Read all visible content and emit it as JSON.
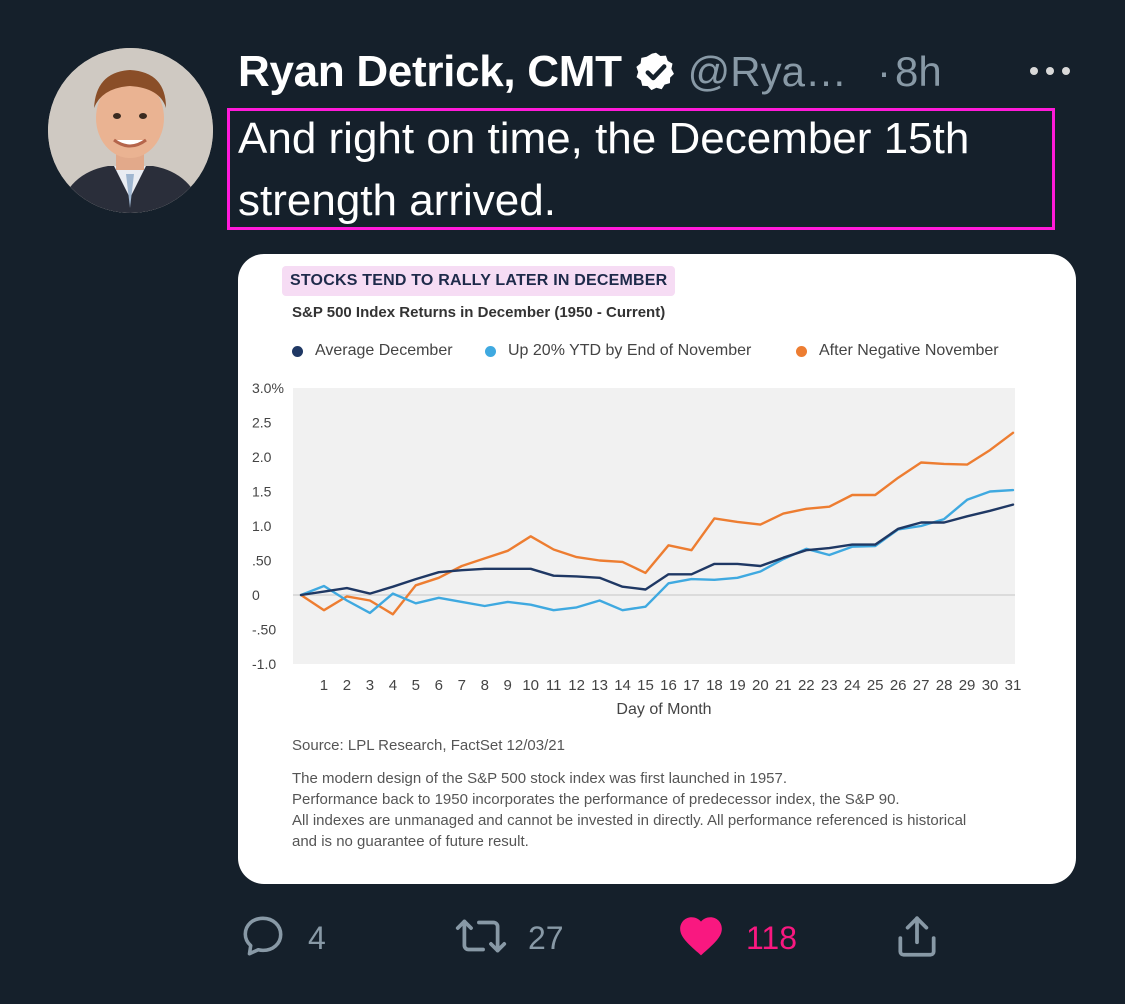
{
  "tweet": {
    "author_name": "Ryan Detrick, CMT",
    "handle": "@Rya…",
    "separator": "·",
    "time": "8h",
    "text_line1": "And right on time, the December 15th",
    "text_line2": "strength arrived."
  },
  "actions": {
    "replies": "4",
    "retweets": "27",
    "likes": "118"
  },
  "icons": [
    "avatar",
    "verified-badge-icon",
    "more-icon",
    "reply-icon",
    "retweet-icon",
    "heart-icon",
    "share-icon"
  ],
  "colors": {
    "background": "#15202b",
    "highlight_border": "#ff1ad9",
    "like": "#f91880",
    "muted": "#8899a6"
  },
  "chart_data": {
    "type": "line",
    "title": "STOCKS TEND TO RALLY LATER IN DECEMBER",
    "subtitle": "S&P 500 Index Returns in December (1950 - Current)",
    "xlabel": "Day of Month",
    "ylabel": "",
    "y_tick_labels": [
      "3.0%",
      "2.5",
      "2.0",
      "1.5",
      "1.0",
      ".50",
      "0",
      "-.50",
      "-1.0"
    ],
    "ylim": [
      -1.0,
      3.0
    ],
    "x": [
      0,
      1,
      2,
      3,
      4,
      5,
      6,
      7,
      8,
      9,
      10,
      11,
      12,
      13,
      14,
      15,
      16,
      17,
      18,
      19,
      20,
      21,
      22,
      23,
      24,
      25,
      26,
      27,
      28,
      29,
      30,
      31
    ],
    "x_tick_labels": [
      "1",
      "2",
      "3",
      "4",
      "5",
      "6",
      "7",
      "8",
      "9",
      "10",
      "11",
      "12",
      "13",
      "14",
      "15",
      "16",
      "17",
      "18",
      "19",
      "20",
      "21",
      "22",
      "23",
      "24",
      "25",
      "26",
      "27",
      "28",
      "29",
      "30",
      "31"
    ],
    "grid": "zero line only",
    "legend_position": "top",
    "series": [
      {
        "name": "Average December",
        "color": "#1f3864",
        "values": [
          0,
          0.05,
          0.1,
          0.02,
          0.12,
          0.23,
          0.33,
          0.36,
          0.38,
          0.38,
          0.38,
          0.28,
          0.27,
          0.25,
          0.12,
          0.08,
          0.3,
          0.3,
          0.45,
          0.45,
          0.42,
          0.54,
          0.65,
          0.68,
          0.73,
          0.73,
          0.96,
          1.05,
          1.05,
          1.14,
          1.22,
          1.31
        ]
      },
      {
        "name": "Up 20% YTD by End of November",
        "color": "#3fa9e0",
        "values": [
          0,
          0.13,
          -0.08,
          -0.26,
          0.02,
          -0.12,
          -0.04,
          -0.1,
          -0.16,
          -0.1,
          -0.14,
          -0.22,
          -0.18,
          -0.08,
          -0.22,
          -0.17,
          0.17,
          0.23,
          0.22,
          0.25,
          0.34,
          0.52,
          0.67,
          0.58,
          0.7,
          0.71,
          0.95,
          1.0,
          1.1,
          1.38,
          1.5,
          1.52
        ]
      },
      {
        "name": "After Negative November",
        "color": "#ed7d31",
        "values": [
          0,
          -0.22,
          -0.02,
          -0.08,
          -0.28,
          0.14,
          0.25,
          0.42,
          0.53,
          0.64,
          0.85,
          0.66,
          0.55,
          0.5,
          0.48,
          0.32,
          0.72,
          0.65,
          1.11,
          1.06,
          1.02,
          1.18,
          1.25,
          1.28,
          1.45,
          1.45,
          1.7,
          1.92,
          1.9,
          1.89,
          2.1,
          2.35
        ]
      }
    ]
  },
  "card_text": {
    "source": "Source: LPL Research, FactSet  12/03/21",
    "notes": [
      "The modern design of the S&P 500 stock index was first launched in 1957.",
      "Performance back to 1950 incorporates the performance of predecessor index, the S&P 90.",
      "All indexes are unmanaged and cannot be invested in directly. All performance referenced is historical",
      "and is no guarantee of future result."
    ]
  }
}
